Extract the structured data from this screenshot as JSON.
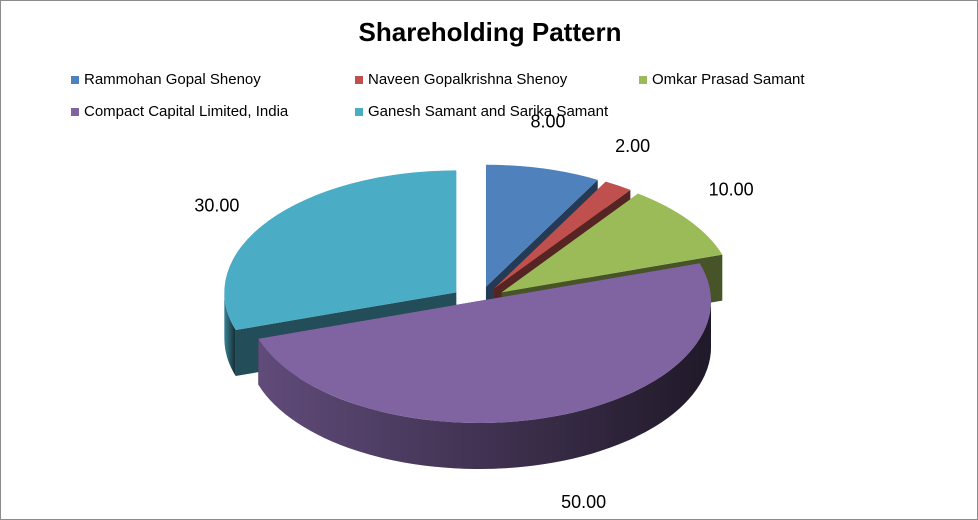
{
  "chart_data": {
    "type": "pie",
    "title": "Shareholding Pattern",
    "categories": [
      "Rammohan Gopal Shenoy",
      "Naveen Gopalkrishna Shenoy",
      "Omkar Prasad Samant",
      "Compact Capital Limited, India",
      "Ganesh Samant and Sarika Samant"
    ],
    "values": [
      8,
      2,
      10,
      50,
      30
    ],
    "value_labels": [
      "8.00",
      "2.00",
      "10.00",
      "50.00",
      "30.00"
    ],
    "colors": [
      "#4f81bd",
      "#c0504d",
      "#9bbb59",
      "#8064a2",
      "#4bacc6"
    ],
    "legend_position": "top",
    "style": "3d-exploded"
  }
}
